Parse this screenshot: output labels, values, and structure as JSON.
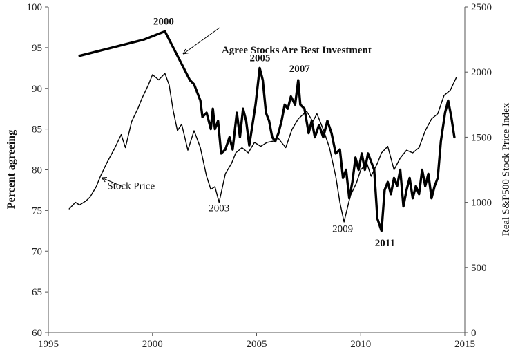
{
  "chart_data": {
    "type": "line",
    "xlim": [
      1995,
      2015
    ],
    "x_ticks": [
      "1995",
      "2000",
      "2005",
      "2010",
      "2015"
    ],
    "ylim_left": [
      60,
      100
    ],
    "y_ticks_left": [
      "60",
      "65",
      "70",
      "75",
      "80",
      "85",
      "90",
      "95",
      "100"
    ],
    "ylim_right": [
      0,
      2500
    ],
    "y_ticks_right": [
      "0",
      "500",
      "1000",
      "1500",
      "2000",
      "2500"
    ],
    "ylabel_left": "Percent agreeing",
    "ylabel_right": "Real S&P500 Stock Price Index",
    "grid": false,
    "series": [
      {
        "name": "Agree Stocks Are Best Investment",
        "axis": "left",
        "color": "#000000",
        "points": [
          [
            1996.5,
            94
          ],
          [
            1999.6,
            96
          ],
          [
            2000.6,
            97
          ],
          [
            2001.8,
            91
          ],
          [
            2002.0,
            90.5
          ],
          [
            2002.3,
            88.5
          ],
          [
            2002.4,
            86.5
          ],
          [
            2002.6,
            87
          ],
          [
            2002.8,
            85
          ],
          [
            2002.9,
            87.5
          ],
          [
            2003.0,
            85
          ],
          [
            2003.15,
            86
          ],
          [
            2003.3,
            82
          ],
          [
            2003.5,
            82.5
          ],
          [
            2003.7,
            84
          ],
          [
            2003.85,
            82.5
          ],
          [
            2004.05,
            87
          ],
          [
            2004.2,
            84
          ],
          [
            2004.35,
            87.5
          ],
          [
            2004.5,
            86
          ],
          [
            2004.65,
            83
          ],
          [
            2004.8,
            85.5
          ],
          [
            2004.95,
            88
          ],
          [
            2005.15,
            92.5
          ],
          [
            2005.3,
            91
          ],
          [
            2005.45,
            87
          ],
          [
            2005.6,
            86
          ],
          [
            2005.75,
            84
          ],
          [
            2005.9,
            83.5
          ],
          [
            2006.05,
            84.5
          ],
          [
            2006.2,
            86
          ],
          [
            2006.35,
            88
          ],
          [
            2006.5,
            87.5
          ],
          [
            2006.65,
            89
          ],
          [
            2006.85,
            88
          ],
          [
            2007.0,
            91
          ],
          [
            2007.1,
            88
          ],
          [
            2007.3,
            87.5
          ],
          [
            2007.5,
            84.5
          ],
          [
            2007.65,
            86
          ],
          [
            2007.8,
            84
          ],
          [
            2008.0,
            85.5
          ],
          [
            2008.2,
            84
          ],
          [
            2008.4,
            86
          ],
          [
            2008.6,
            84.5
          ],
          [
            2008.8,
            82
          ],
          [
            2009.0,
            82.5
          ],
          [
            2009.15,
            79
          ],
          [
            2009.3,
            80
          ],
          [
            2009.45,
            76.5
          ],
          [
            2009.6,
            78.5
          ],
          [
            2009.75,
            81.5
          ],
          [
            2009.9,
            80
          ],
          [
            2010.05,
            82
          ],
          [
            2010.2,
            80
          ],
          [
            2010.35,
            82
          ],
          [
            2010.5,
            81
          ],
          [
            2010.65,
            80
          ],
          [
            2010.8,
            74
          ],
          [
            2011.0,
            72.5
          ],
          [
            2011.15,
            77.5
          ],
          [
            2011.3,
            78.5
          ],
          [
            2011.45,
            77
          ],
          [
            2011.6,
            79
          ],
          [
            2011.75,
            78
          ],
          [
            2011.9,
            80
          ],
          [
            2012.05,
            75.5
          ],
          [
            2012.2,
            77.5
          ],
          [
            2012.35,
            79
          ],
          [
            2012.5,
            76.5
          ],
          [
            2012.65,
            78
          ],
          [
            2012.8,
            77
          ],
          [
            2012.95,
            80
          ],
          [
            2013.1,
            78
          ],
          [
            2013.25,
            79.5
          ],
          [
            2013.4,
            76.5
          ],
          [
            2013.55,
            78
          ],
          [
            2013.7,
            79
          ],
          [
            2013.85,
            83.5
          ],
          [
            2014.05,
            87
          ],
          [
            2014.2,
            88.5
          ],
          [
            2014.35,
            86.5
          ],
          [
            2014.5,
            84
          ]
        ]
      },
      {
        "name": "Stock Price",
        "axis": "right",
        "color": "#000000",
        "points": [
          [
            1996.0,
            950
          ],
          [
            1996.3,
            1000
          ],
          [
            1996.5,
            980
          ],
          [
            1996.8,
            1010
          ],
          [
            1997.0,
            1040
          ],
          [
            1997.3,
            1120
          ],
          [
            1997.5,
            1200
          ],
          [
            1997.8,
            1300
          ],
          [
            1998.0,
            1360
          ],
          [
            1998.2,
            1420
          ],
          [
            1998.5,
            1520
          ],
          [
            1998.7,
            1420
          ],
          [
            1999.0,
            1620
          ],
          [
            1999.3,
            1720
          ],
          [
            1999.5,
            1800
          ],
          [
            1999.8,
            1900
          ],
          [
            2000.0,
            1980
          ],
          [
            2000.3,
            1940
          ],
          [
            2000.6,
            1990
          ],
          [
            2000.8,
            1900
          ],
          [
            2001.0,
            1700
          ],
          [
            2001.2,
            1550
          ],
          [
            2001.4,
            1600
          ],
          [
            2001.7,
            1400
          ],
          [
            2002.0,
            1550
          ],
          [
            2002.3,
            1420
          ],
          [
            2002.6,
            1200
          ],
          [
            2002.8,
            1100
          ],
          [
            2003.0,
            1120
          ],
          [
            2003.2,
            1000
          ],
          [
            2003.5,
            1220
          ],
          [
            2003.8,
            1300
          ],
          [
            2004.0,
            1380
          ],
          [
            2004.3,
            1420
          ],
          [
            2004.6,
            1380
          ],
          [
            2004.9,
            1460
          ],
          [
            2005.2,
            1430
          ],
          [
            2005.5,
            1460
          ],
          [
            2005.8,
            1470
          ],
          [
            2006.0,
            1500
          ],
          [
            2006.4,
            1420
          ],
          [
            2006.7,
            1560
          ],
          [
            2007.0,
            1640
          ],
          [
            2007.4,
            1700
          ],
          [
            2007.7,
            1620
          ],
          [
            2007.9,
            1680
          ],
          [
            2008.2,
            1560
          ],
          [
            2008.5,
            1420
          ],
          [
            2008.8,
            1200
          ],
          [
            2009.0,
            1000
          ],
          [
            2009.2,
            850
          ],
          [
            2009.5,
            1050
          ],
          [
            2009.8,
            1150
          ],
          [
            2010.0,
            1250
          ],
          [
            2010.3,
            1300
          ],
          [
            2010.5,
            1200
          ],
          [
            2010.8,
            1300
          ],
          [
            2011.0,
            1380
          ],
          [
            2011.3,
            1430
          ],
          [
            2011.6,
            1250
          ],
          [
            2011.9,
            1340
          ],
          [
            2012.2,
            1400
          ],
          [
            2012.5,
            1380
          ],
          [
            2012.8,
            1420
          ],
          [
            2013.1,
            1550
          ],
          [
            2013.4,
            1640
          ],
          [
            2013.7,
            1680
          ],
          [
            2014.0,
            1820
          ],
          [
            2014.3,
            1860
          ],
          [
            2014.6,
            1960
          ]
        ]
      }
    ],
    "annotations": [
      {
        "text": "2000",
        "x": 2000.6,
        "y": 97,
        "axis": "left",
        "bold": true
      },
      {
        "text": "2003",
        "x": 2003.2,
        "y": 77.3,
        "axis": "left",
        "bold": false
      },
      {
        "text": "2005",
        "x": 2005.1,
        "y": 92.5,
        "axis": "left",
        "bold": true
      },
      {
        "text": "2007",
        "x": 2007.0,
        "y": 91,
        "axis": "left",
        "bold": true
      },
      {
        "text": "2009",
        "x": 2009.2,
        "y": 74.5,
        "axis": "left",
        "bold": false
      },
      {
        "text": "2011",
        "x": 2011.0,
        "y": 72.3,
        "axis": "left",
        "bold": true
      },
      {
        "text": "Agree Stocks Are Best Investment",
        "x": 2001.5,
        "y": 94.3,
        "axis": "left",
        "bold": true
      },
      {
        "text": "Stock Price",
        "x": 1997.5,
        "y": 79.5,
        "axis": "left",
        "bold": false
      }
    ]
  }
}
